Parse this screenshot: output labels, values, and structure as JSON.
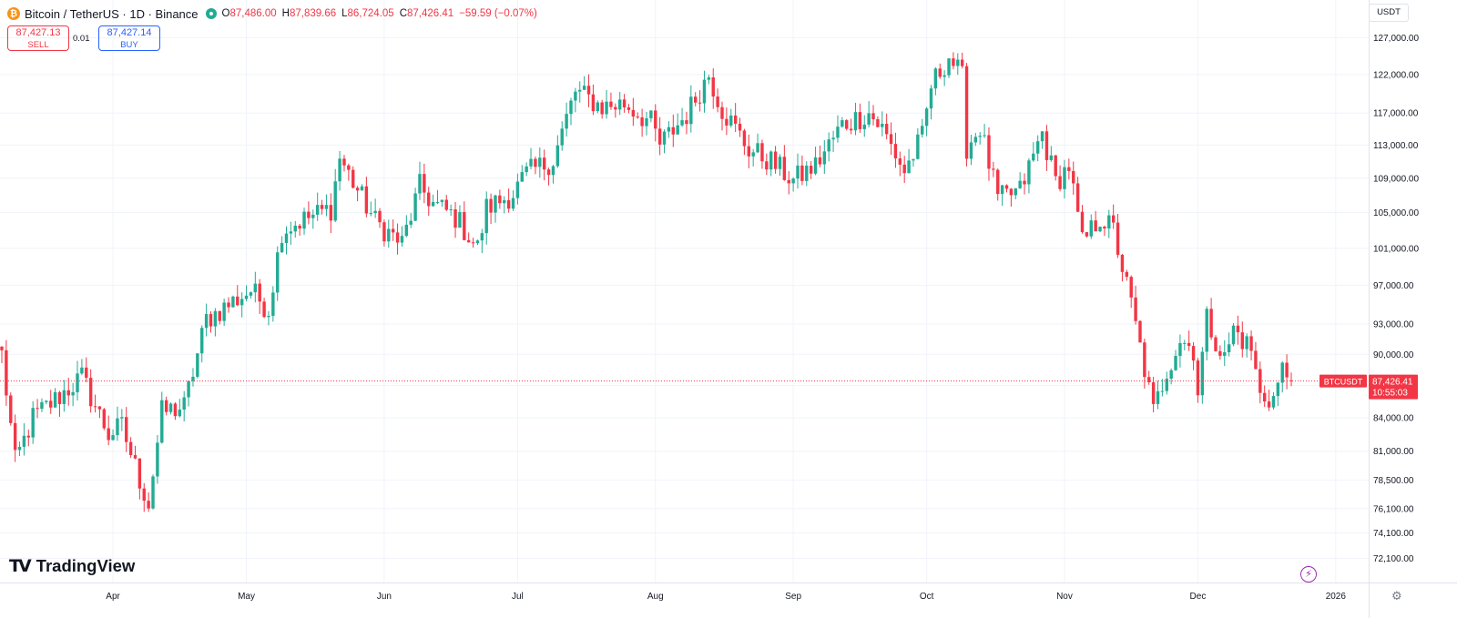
{
  "header": {
    "symbol_title": "Bitcoin / TetherUS · 1D · Binance",
    "symbol_icon": "bitcoin-icon",
    "ohlc": [
      {
        "key": "O",
        "value": "87,486.00"
      },
      {
        "key": "H",
        "value": "87,839.66"
      },
      {
        "key": "L",
        "value": "86,724.05"
      },
      {
        "key": "C",
        "value": "87,426.41"
      }
    ],
    "change": "−59.59 (−0.07%)"
  },
  "trade": {
    "sell_price": "87,427.13",
    "sell_label": "SELL",
    "spread": "0.01",
    "buy_price": "87,427.14",
    "buy_label": "BUY"
  },
  "currency_button": "USDT",
  "branding": {
    "logo_mark": "TV",
    "logo_text": "TradingView"
  },
  "price_tag": {
    "symbol": "BTCUSDT",
    "price": "87,426.41",
    "countdown": "10:55:03"
  },
  "colors": {
    "up": "#22ab94",
    "down": "#f23645",
    "grid": "#f0f3fa",
    "axis_text": "#131722",
    "time_text": "#131722"
  },
  "chart_data": {
    "type": "candlestick",
    "title": "Bitcoin / TetherUS · 1D · Binance",
    "y_axis": {
      "side": "right",
      "scale": "log",
      "range": [
        70500,
        131000
      ],
      "ticks": [
        127000,
        122000,
        117000,
        113000,
        109000,
        105000,
        101000,
        97000,
        93000,
        90000,
        87000,
        84000,
        81000,
        78500,
        76100,
        74100,
        72100
      ],
      "tick_labels": [
        "127,000.00",
        "122,000.00",
        "117,000.00",
        "113,000.00",
        "109,000.00",
        "105,000.00",
        "101,000.00",
        "97,000.00",
        "93,000.00",
        "90,000.00",
        "",
        "84,000.00",
        "81,000.00",
        "78,500.00",
        "76,100.00",
        "74,100.00",
        "72,100.00"
      ]
    },
    "x_axis": {
      "labels": [
        "Apr",
        "May",
        "Jun",
        "Jul",
        "Aug",
        "Sep",
        "Oct",
        "Nov",
        "Dec",
        "2026"
      ],
      "label_dates": [
        "2025-04-01",
        "2025-05-01",
        "2025-06-01",
        "2025-07-01",
        "2025-08-01",
        "2025-09-01",
        "2025-10-01",
        "2025-11-01",
        "2025-12-01",
        "2026-01-01"
      ],
      "first_candle_date": "2025-03-07",
      "last_candle_date": "2025-12-22",
      "range": [
        "2025-03-07",
        "2026-01-08"
      ]
    },
    "last_price": 87426.41,
    "anchors": [
      [
        "2025-03-07",
        90000
      ],
      [
        "2025-03-10",
        80000
      ],
      [
        "2025-03-14",
        84000
      ],
      [
        "2025-03-20",
        86000
      ],
      [
        "2025-03-25",
        87800
      ],
      [
        "2025-03-31",
        82500
      ],
      [
        "2025-04-03",
        83200
      ],
      [
        "2025-04-07",
        78500
      ],
      [
        "2025-04-09",
        76500
      ],
      [
        "2025-04-12",
        84500
      ],
      [
        "2025-04-17",
        85000
      ],
      [
        "2025-04-22",
        93500
      ],
      [
        "2025-04-26",
        94700
      ],
      [
        "2025-05-02",
        96500
      ],
      [
        "2025-05-06",
        94500
      ],
      [
        "2025-05-09",
        103000
      ],
      [
        "2025-05-13",
        104000
      ],
      [
        "2025-05-20",
        105500
      ],
      [
        "2025-05-22",
        111500
      ],
      [
        "2025-05-25",
        108500
      ],
      [
        "2025-05-30",
        104000
      ],
      [
        "2025-06-05",
        101500
      ],
      [
        "2025-06-09",
        108000
      ],
      [
        "2025-06-12",
        106000
      ],
      [
        "2025-06-17",
        104500
      ],
      [
        "2025-06-22",
        101000
      ],
      [
        "2025-06-24",
        105500
      ],
      [
        "2025-06-30",
        107200
      ],
      [
        "2025-07-03",
        109500
      ],
      [
        "2025-07-09",
        111200
      ],
      [
        "2025-07-14",
        119800
      ],
      [
        "2025-07-20",
        117800
      ],
      [
        "2025-07-25",
        118200
      ],
      [
        "2025-07-31",
        115800
      ],
      [
        "2025-08-02",
        113000
      ],
      [
        "2025-08-08",
        116800
      ],
      [
        "2025-08-13",
        122000
      ],
      [
        "2025-08-16",
        117500
      ],
      [
        "2025-08-22",
        112500
      ],
      [
        "2025-08-27",
        111000
      ],
      [
        "2025-09-01",
        108700
      ],
      [
        "2025-09-06",
        110500
      ],
      [
        "2025-09-12",
        115500
      ],
      [
        "2025-09-18",
        117000
      ],
      [
        "2025-09-21",
        115000
      ],
      [
        "2025-09-26",
        109800
      ],
      [
        "2025-09-30",
        114000
      ],
      [
        "2025-10-02",
        120500
      ],
      [
        "2025-10-06",
        124500
      ],
      [
        "2025-10-09",
        121500
      ],
      [
        "2025-10-10",
        112800
      ],
      [
        "2025-10-13",
        115200
      ],
      [
        "2025-10-17",
        106500
      ],
      [
        "2025-10-22",
        107500
      ],
      [
        "2025-10-27",
        114500
      ],
      [
        "2025-10-30",
        108500
      ],
      [
        "2025-11-02",
        110500
      ],
      [
        "2025-11-05",
        101500
      ],
      [
        "2025-11-09",
        104500
      ],
      [
        "2025-11-12",
        103000
      ],
      [
        "2025-11-16",
        95000
      ],
      [
        "2025-11-21",
        84500
      ],
      [
        "2025-11-24",
        88500
      ],
      [
        "2025-11-27",
        91500
      ],
      [
        "2025-11-30",
        90500
      ],
      [
        "2025-12-01",
        86500
      ],
      [
        "2025-12-03",
        93500
      ],
      [
        "2025-12-07",
        89500
      ],
      [
        "2025-12-09",
        92500
      ],
      [
        "2025-12-13",
        90500
      ],
      [
        "2025-12-15",
        86000
      ],
      [
        "2025-12-18",
        85800
      ],
      [
        "2025-12-20",
        88500
      ],
      [
        "2025-12-22",
        87426
      ]
    ]
  }
}
